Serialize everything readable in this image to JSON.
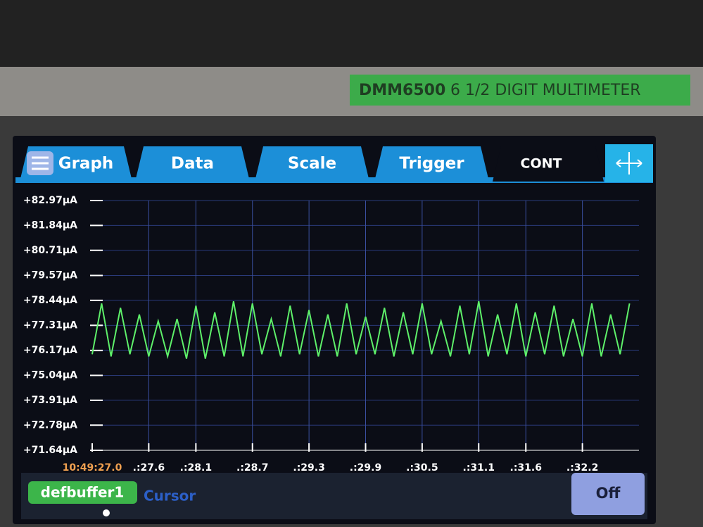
{
  "header": {
    "model": "DMM6500",
    "description": "6 1/2 DIGIT MULTIMETER"
  },
  "tabs": [
    "Graph",
    "Data",
    "Scale",
    "Trigger",
    "CONT"
  ],
  "footer": {
    "buffer": "defbuffer1",
    "cursor": "Cursor",
    "button": "Off"
  },
  "chart_data": {
    "type": "line",
    "x": [
      27.0,
      27.1,
      27.2,
      27.3,
      27.4,
      27.5,
      27.6,
      27.7,
      27.8,
      27.9,
      28.0,
      28.1,
      28.2,
      28.3,
      28.4,
      28.5,
      28.6,
      28.7,
      28.8,
      28.9,
      29.0,
      29.1,
      29.2,
      29.3,
      29.4,
      29.5,
      29.6,
      29.7,
      29.8,
      29.9,
      30.0,
      30.1,
      30.2,
      30.3,
      30.4,
      30.5,
      30.6,
      30.7,
      30.8,
      30.9,
      31.0,
      31.1,
      31.2,
      31.3,
      31.4,
      31.5,
      31.6,
      31.7,
      31.8,
      31.9,
      32.0,
      32.1,
      32.2,
      32.3,
      32.4,
      32.5,
      32.6,
      32.7
    ],
    "series": [
      {
        "name": "defbuffer1",
        "color": "#5ef06a",
        "values": [
          76.0,
          78.3,
          75.9,
          78.1,
          76.0,
          77.8,
          75.9,
          77.5,
          75.9,
          77.6,
          75.8,
          78.2,
          75.8,
          77.9,
          75.9,
          78.4,
          75.9,
          78.3,
          76.0,
          77.6,
          75.9,
          78.2,
          76.0,
          78.0,
          75.9,
          77.8,
          75.9,
          78.3,
          76.0,
          77.7,
          76.0,
          78.1,
          75.9,
          77.9,
          76.0,
          78.3,
          76.0,
          77.5,
          75.9,
          78.2,
          76.0,
          78.4,
          75.9,
          77.8,
          76.0,
          78.3,
          75.9,
          77.9,
          76.0,
          78.2,
          75.9,
          77.6,
          75.9,
          78.3,
          75.9,
          77.8,
          76.0,
          78.3
        ]
      }
    ],
    "xlim": [
      27.0,
      32.8
    ],
    "ylim": [
      71.64,
      82.97
    ],
    "grid": true,
    "yticks": [
      {
        "value": 71.64,
        "label": "+71.64µA"
      },
      {
        "value": 72.78,
        "label": "+72.78µA"
      },
      {
        "value": 73.91,
        "label": "+73.91µA"
      },
      {
        "value": 75.04,
        "label": "+75.04µA"
      },
      {
        "value": 76.17,
        "label": "+76.17µA"
      },
      {
        "value": 77.31,
        "label": "+77.31µA"
      },
      {
        "value": 78.44,
        "label": "+78.44µA"
      },
      {
        "value": 79.57,
        "label": "+79.57µA"
      },
      {
        "value": 80.71,
        "label": "+80.71µA"
      },
      {
        "value": 81.84,
        "label": "+81.84µA"
      },
      {
        "value": 82.97,
        "label": "+82.97µA"
      }
    ],
    "xticks": [
      {
        "value": 27.0,
        "label": "10:49:27.0"
      },
      {
        "value": 27.6,
        "label": ".:27.6"
      },
      {
        "value": 28.1,
        "label": ".:28.1"
      },
      {
        "value": 28.7,
        "label": ".:28.7"
      },
      {
        "value": 29.3,
        "label": ".:29.3"
      },
      {
        "value": 29.9,
        "label": ".:29.9"
      },
      {
        "value": 30.5,
        "label": ".:30.5"
      },
      {
        "value": 31.1,
        "label": ".:31.1"
      },
      {
        "value": 31.6,
        "label": ".:31.6"
      },
      {
        "value": 32.2,
        "label": ".:32.2"
      }
    ]
  }
}
